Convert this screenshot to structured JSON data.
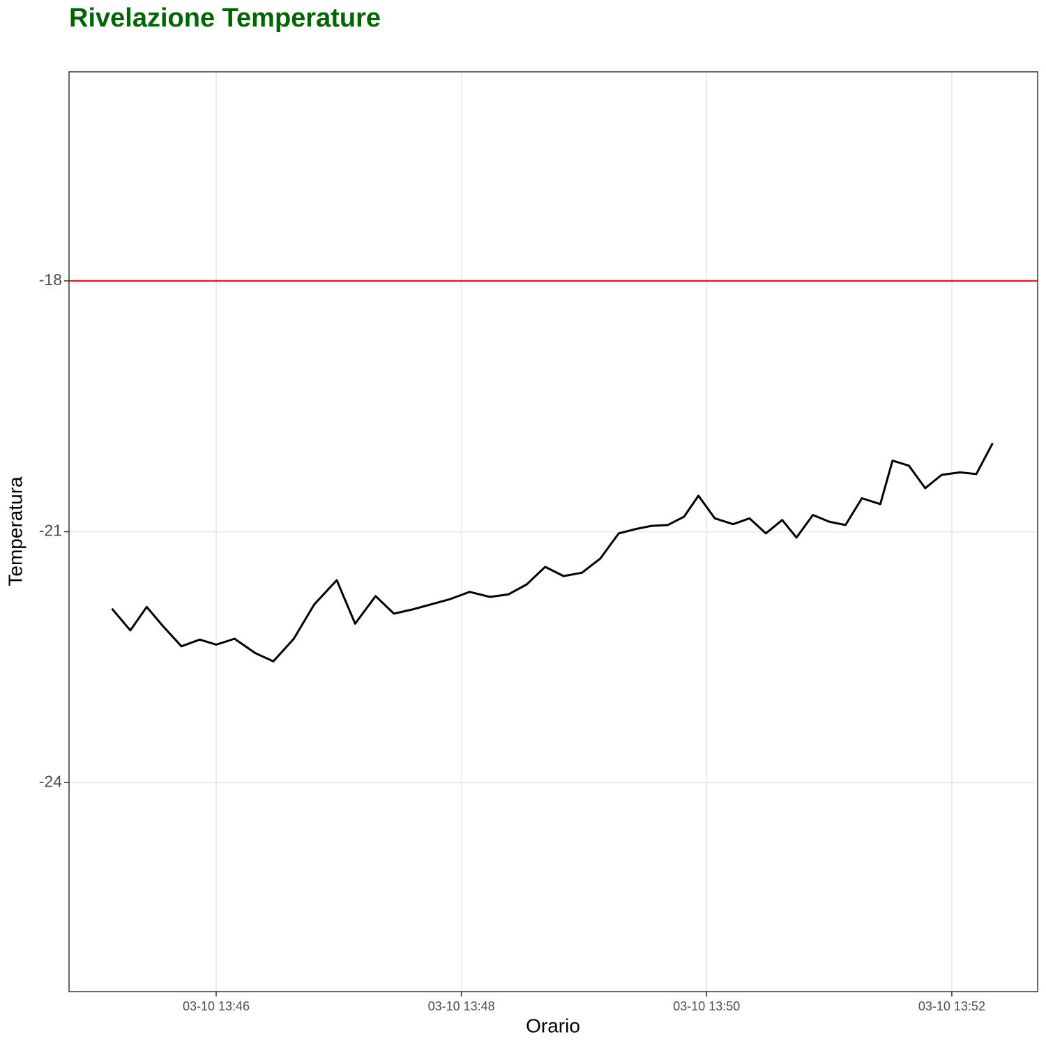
{
  "chart_data": {
    "type": "line",
    "title": "Rivelazione Temperature",
    "title_color": "#006400",
    "x_label": "Orario",
    "y_label": "Temperatura",
    "x": [
      "03-10 13:45:09",
      "03-10 13:45:18",
      "03-10 13:45:26",
      "03-10 13:45:34",
      "03-10 13:45:43",
      "03-10 13:45:52",
      "03-10 13:46:00",
      "03-10 13:46:09",
      "03-10 13:46:19",
      "03-10 13:46:28",
      "03-10 13:46:38",
      "03-10 13:46:48",
      "03-10 13:46:59",
      "03-10 13:47:08",
      "03-10 13:47:18",
      "03-10 13:47:27",
      "03-10 13:47:36",
      "03-10 13:47:45",
      "03-10 13:47:54",
      "03-10 13:48:04",
      "03-10 13:48:14",
      "03-10 13:48:23",
      "03-10 13:48:32",
      "03-10 13:48:41",
      "03-10 13:48:50",
      "03-10 13:48:59",
      "03-10 13:49:08",
      "03-10 13:49:17",
      "03-10 13:49:25",
      "03-10 13:49:33",
      "03-10 13:49:41",
      "03-10 13:49:49",
      "03-10 13:49:56",
      "03-10 13:50:04",
      "03-10 13:50:13",
      "03-10 13:50:21",
      "03-10 13:50:29",
      "03-10 13:50:37",
      "03-10 13:50:44",
      "03-10 13:50:52",
      "03-10 13:51:00",
      "03-10 13:51:08",
      "03-10 13:51:16",
      "03-10 13:51:25",
      "03-10 13:51:31",
      "03-10 13:51:39",
      "03-10 13:51:47",
      "03-10 13:51:55",
      "03-10 13:52:04",
      "03-10 13:52:12",
      "03-10 13:52:20"
    ],
    "values": [
      -21.92,
      -22.18,
      -21.9,
      -22.13,
      -22.37,
      -22.29,
      -22.35,
      -22.28,
      -22.45,
      -22.55,
      -22.28,
      -21.87,
      -21.58,
      -22.1,
      -21.77,
      -21.98,
      -21.93,
      -21.87,
      -21.81,
      -21.72,
      -21.78,
      -21.75,
      -21.63,
      -21.42,
      -21.53,
      -21.49,
      -21.32,
      -21.02,
      -20.97,
      -20.93,
      -20.92,
      -20.82,
      -20.57,
      -20.84,
      -20.91,
      -20.84,
      -21.02,
      -20.86,
      -21.07,
      -20.8,
      -20.88,
      -20.92,
      -20.6,
      -20.67,
      -20.15,
      -20.21,
      -20.48,
      -20.32,
      -20.29,
      -20.31,
      -19.94
    ],
    "color": "#000000",
    "xlim": [
      "03-10 13:44:48",
      "03-10 13:52:42"
    ],
    "xticks": [
      "03-10 13:46",
      "03-10 13:48",
      "03-10 13:50",
      "03-10 13:52"
    ],
    "ylim": [
      -26.5,
      -15.5
    ],
    "yticks": [
      -24,
      -21,
      -18
    ],
    "hline": {
      "value": -18,
      "color": "#e00000"
    },
    "grid": true
  }
}
